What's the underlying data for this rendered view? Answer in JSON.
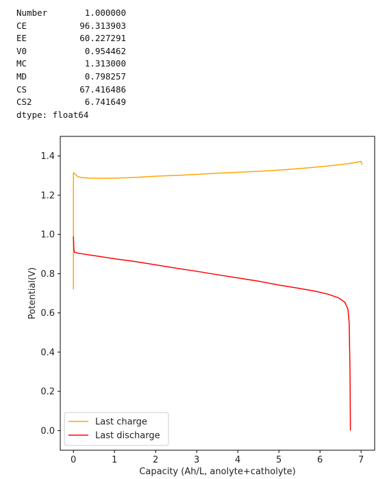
{
  "output": {
    "rows": [
      {
        "key": "Number",
        "value": "1.000000"
      },
      {
        "key": "CE",
        "value": "96.313903"
      },
      {
        "key": "EE",
        "value": "60.227291"
      },
      {
        "key": "V0",
        "value": "0.954462"
      },
      {
        "key": "MC",
        "value": "1.313000"
      },
      {
        "key": "MD",
        "value": "0.798257"
      },
      {
        "key": "CS",
        "value": "67.416486"
      },
      {
        "key": "CS2",
        "value": "6.741649"
      }
    ],
    "dtype": "dtype: float64"
  },
  "chart_data": {
    "type": "line",
    "title": "",
    "xlabel": "Capacity (Ah/L, anolyte+catholyte)",
    "ylabel": "Potential(V)",
    "xlim": [
      -0.32,
      7.33
    ],
    "ylim": [
      -0.1,
      1.5
    ],
    "xticks": [
      0,
      1,
      2,
      3,
      4,
      5,
      6,
      7
    ],
    "yticks": [
      0.0,
      0.2,
      0.4,
      0.6,
      0.8,
      1.0,
      1.2,
      1.4
    ],
    "ytick_labels": [
      "0.0",
      "0.2",
      "0.4",
      "0.6",
      "0.8",
      "1.0",
      "1.2",
      "1.4"
    ],
    "grid": false,
    "legend": "lower-left",
    "series": [
      {
        "name": "Last charge",
        "color": "#ffa500",
        "x": [
          0.0,
          0.0,
          0.0,
          0.03,
          0.1,
          0.2,
          0.4,
          0.7,
          1.0,
          1.5,
          2.0,
          2.5,
          3.0,
          3.5,
          4.0,
          4.5,
          5.0,
          5.5,
          6.0,
          6.5,
          6.85,
          7.0,
          7.02
        ],
        "y": [
          0.72,
          1.2,
          1.315,
          1.31,
          1.295,
          1.29,
          1.287,
          1.286,
          1.287,
          1.291,
          1.297,
          1.301,
          1.306,
          1.312,
          1.317,
          1.322,
          1.328,
          1.336,
          1.345,
          1.356,
          1.366,
          1.373,
          1.355
        ]
      },
      {
        "name": "Last discharge",
        "color": "#ff0000",
        "x": [
          0.0,
          0.01,
          0.02,
          0.1,
          0.5,
          1.0,
          1.5,
          2.0,
          2.5,
          3.0,
          3.5,
          4.0,
          4.5,
          5.0,
          5.5,
          5.9,
          6.2,
          6.45,
          6.6,
          6.68,
          6.71,
          6.73,
          6.74
        ],
        "y": [
          0.99,
          0.93,
          0.91,
          0.905,
          0.892,
          0.876,
          0.862,
          0.845,
          0.828,
          0.812,
          0.795,
          0.778,
          0.762,
          0.742,
          0.725,
          0.71,
          0.695,
          0.677,
          0.655,
          0.62,
          0.55,
          0.3,
          0.0
        ]
      }
    ]
  }
}
